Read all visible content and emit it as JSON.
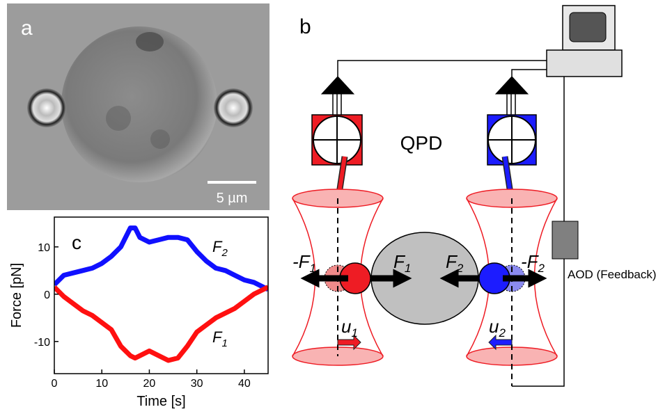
{
  "panel_a": {
    "label": "a",
    "scale_bar": "5 µm"
  },
  "panel_b": {
    "label": "b",
    "detector": "QPD",
    "actuator": "AOD (Feedback)",
    "forces": [
      {
        "text": "-F",
        "sub": "1"
      },
      {
        "text": "F",
        "sub": "1"
      },
      {
        "text": "F",
        "sub": "2"
      },
      {
        "text": "-F",
        "sub": "2"
      }
    ],
    "displacements": [
      {
        "text": "u",
        "sub": "1"
      },
      {
        "text": "u",
        "sub": "2"
      }
    ]
  },
  "chart_data": {
    "type": "line",
    "panel_label": "c",
    "x_label": "Time [s]",
    "y_label": "Force [pN]",
    "x": [
      0,
      2,
      4,
      6,
      8,
      10,
      12,
      14,
      16,
      17,
      18,
      20,
      22,
      24,
      26,
      28,
      30,
      32,
      34,
      36,
      38,
      40,
      42,
      44,
      45
    ],
    "series": [
      {
        "name": "F",
        "name_sub": "2",
        "color": "#1010ff",
        "values": [
          2,
          4,
          4.5,
          5,
          5.5,
          6.5,
          8,
          10,
          14,
          14,
          12,
          11,
          11.5,
          12,
          12,
          11.5,
          9,
          7,
          5.5,
          5,
          4,
          3,
          2.5,
          1.5,
          1
        ]
      },
      {
        "name": "F",
        "name_sub": "1",
        "color": "#ff1010",
        "values": [
          1.5,
          -0.5,
          -2,
          -3.5,
          -4.5,
          -6,
          -7.5,
          -11,
          -13,
          -13.5,
          -13,
          -12,
          -13,
          -14,
          -13.5,
          -11,
          -8,
          -6.5,
          -5,
          -4,
          -3,
          -1.5,
          0,
          1,
          1.5
        ]
      }
    ],
    "xlim": [
      0,
      45
    ],
    "ylim": [
      -16.8,
      16.3
    ],
    "xticks": [
      0,
      10,
      20,
      30,
      40
    ],
    "yticks": [
      -10,
      0,
      10
    ]
  }
}
